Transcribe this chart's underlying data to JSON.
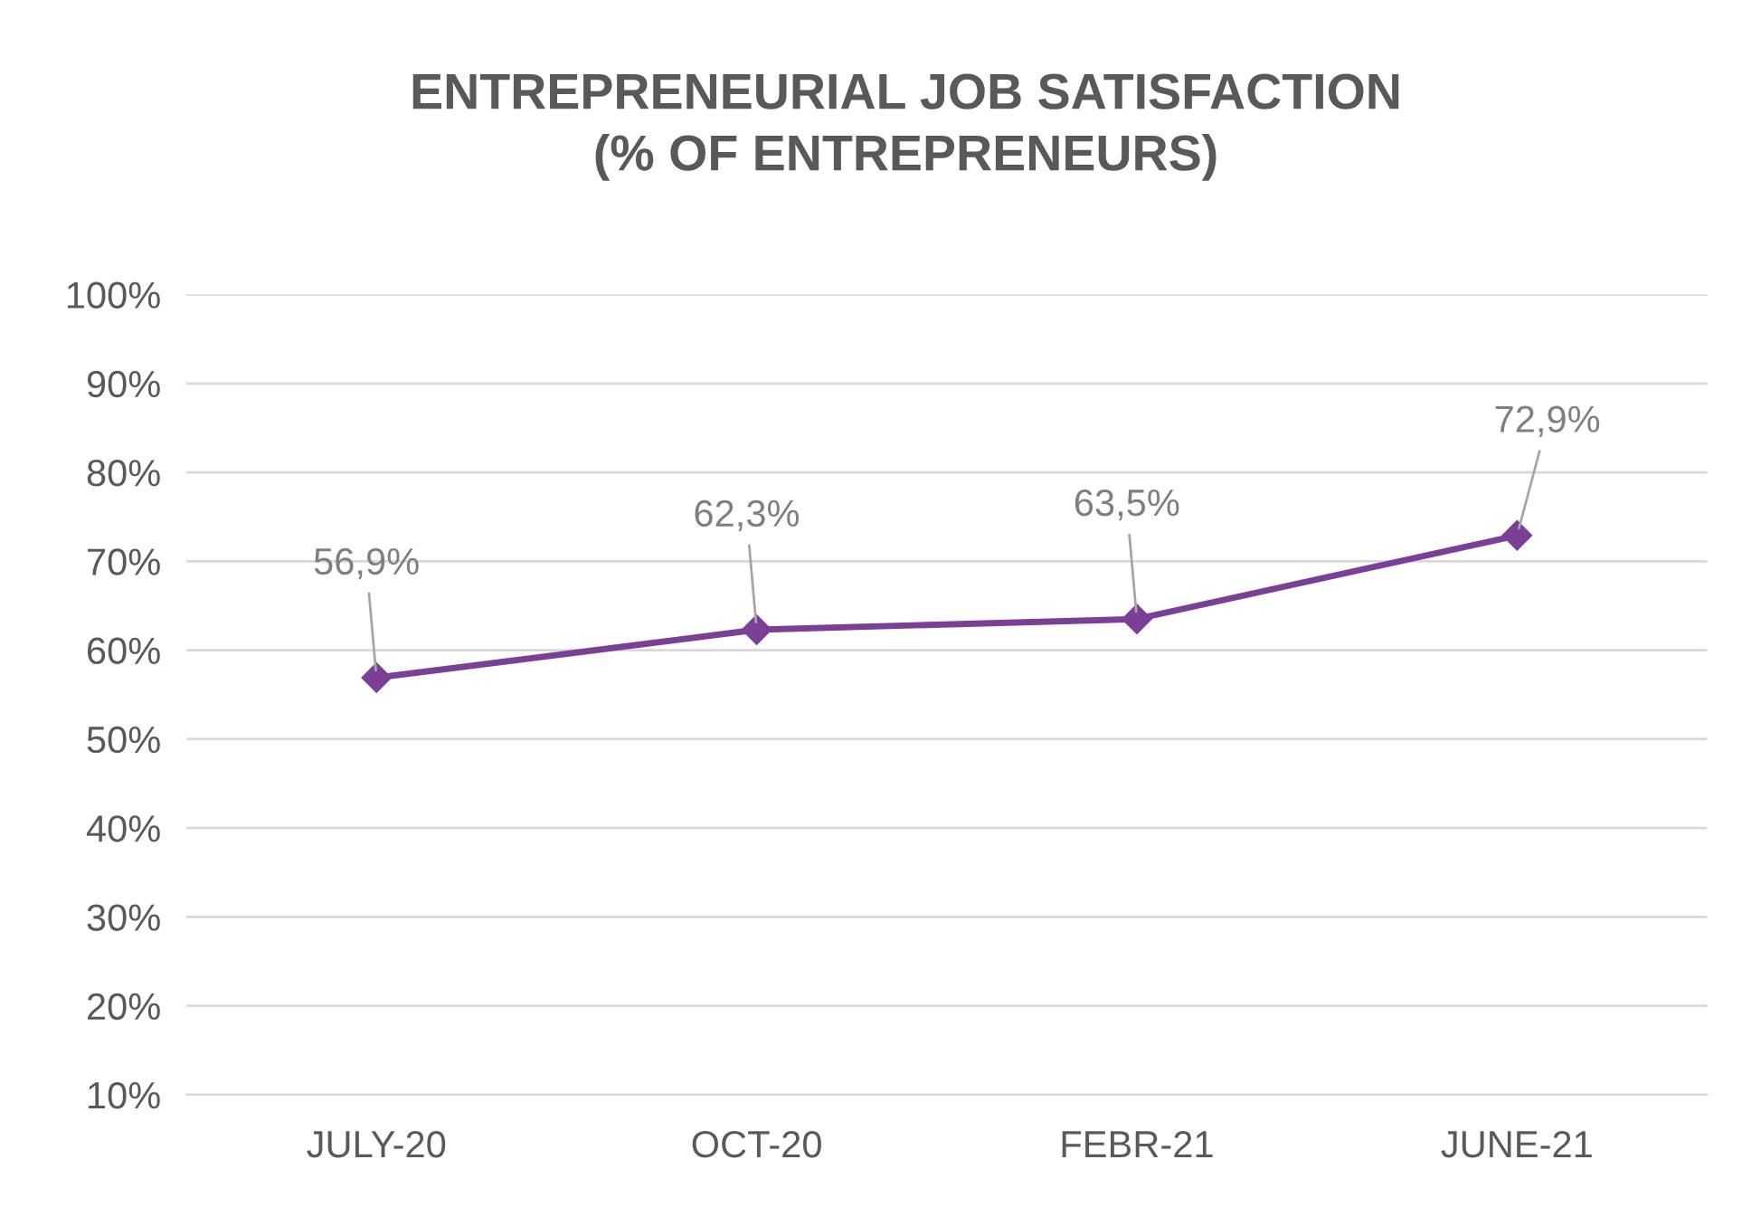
{
  "chart_data": {
    "type": "line",
    "title": "ENTREPRENEURIAL JOB SATISFACTION\n(% OF ENTREPRENEURS)",
    "categories": [
      "JULY-20",
      "OCT-20",
      "FEBR-21",
      "JUNE-21"
    ],
    "series": [
      {
        "color": "#7b3f98",
        "values": [
          56.9,
          62.3,
          63.5,
          72.9
        ],
        "value_labels": [
          "56,9%",
          "62,3%",
          "63,5%",
          "72,9%"
        ]
      }
    ],
    "ylim": [
      10,
      100
    ],
    "yticks": [
      {
        "value": 10,
        "label": "10%"
      },
      {
        "value": 20,
        "label": "20%"
      },
      {
        "value": 30,
        "label": "30%"
      },
      {
        "value": 40,
        "label": "40%"
      },
      {
        "value": 50,
        "label": "50%"
      },
      {
        "value": 60,
        "label": "60%"
      },
      {
        "value": 70,
        "label": "70%"
      },
      {
        "value": 80,
        "label": "80%"
      },
      {
        "value": 90,
        "label": "90%"
      },
      {
        "value": 100,
        "label": "100%"
      }
    ],
    "grid": "y",
    "marker": "diamond",
    "line_style": "solid"
  }
}
